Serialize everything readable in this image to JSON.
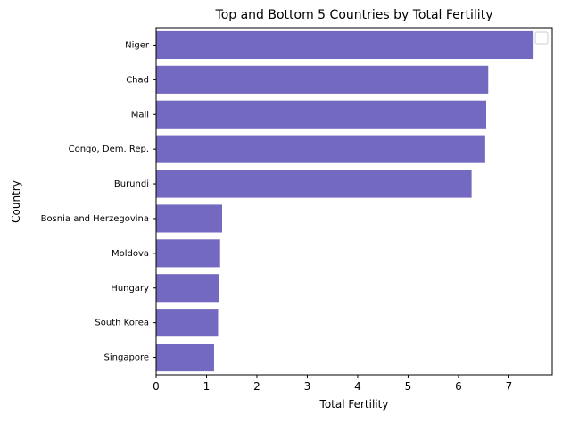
{
  "chart_data": {
    "type": "bar",
    "orientation": "horizontal",
    "title": "Top and Bottom 5 Countries by Total Fertility",
    "xlabel": "Total Fertility",
    "ylabel": "Country",
    "categories": [
      "Niger",
      "Chad",
      "Mali",
      "Congo, Dem. Rep.",
      "Burundi",
      "Bosnia and Herzegovina",
      "Moldova",
      "Hungary",
      "South Korea",
      "Singapore"
    ],
    "values": [
      7.49,
      6.59,
      6.55,
      6.53,
      6.26,
      1.31,
      1.27,
      1.25,
      1.23,
      1.15
    ],
    "xlim": [
      0,
      7.86
    ],
    "xticks": [
      0,
      1,
      2,
      3,
      4,
      5,
      6,
      7
    ],
    "grid": false,
    "legend": {
      "location": "top-right",
      "entries": []
    },
    "colors": {
      "bar": "#7469c1",
      "axis": "#000000"
    }
  }
}
